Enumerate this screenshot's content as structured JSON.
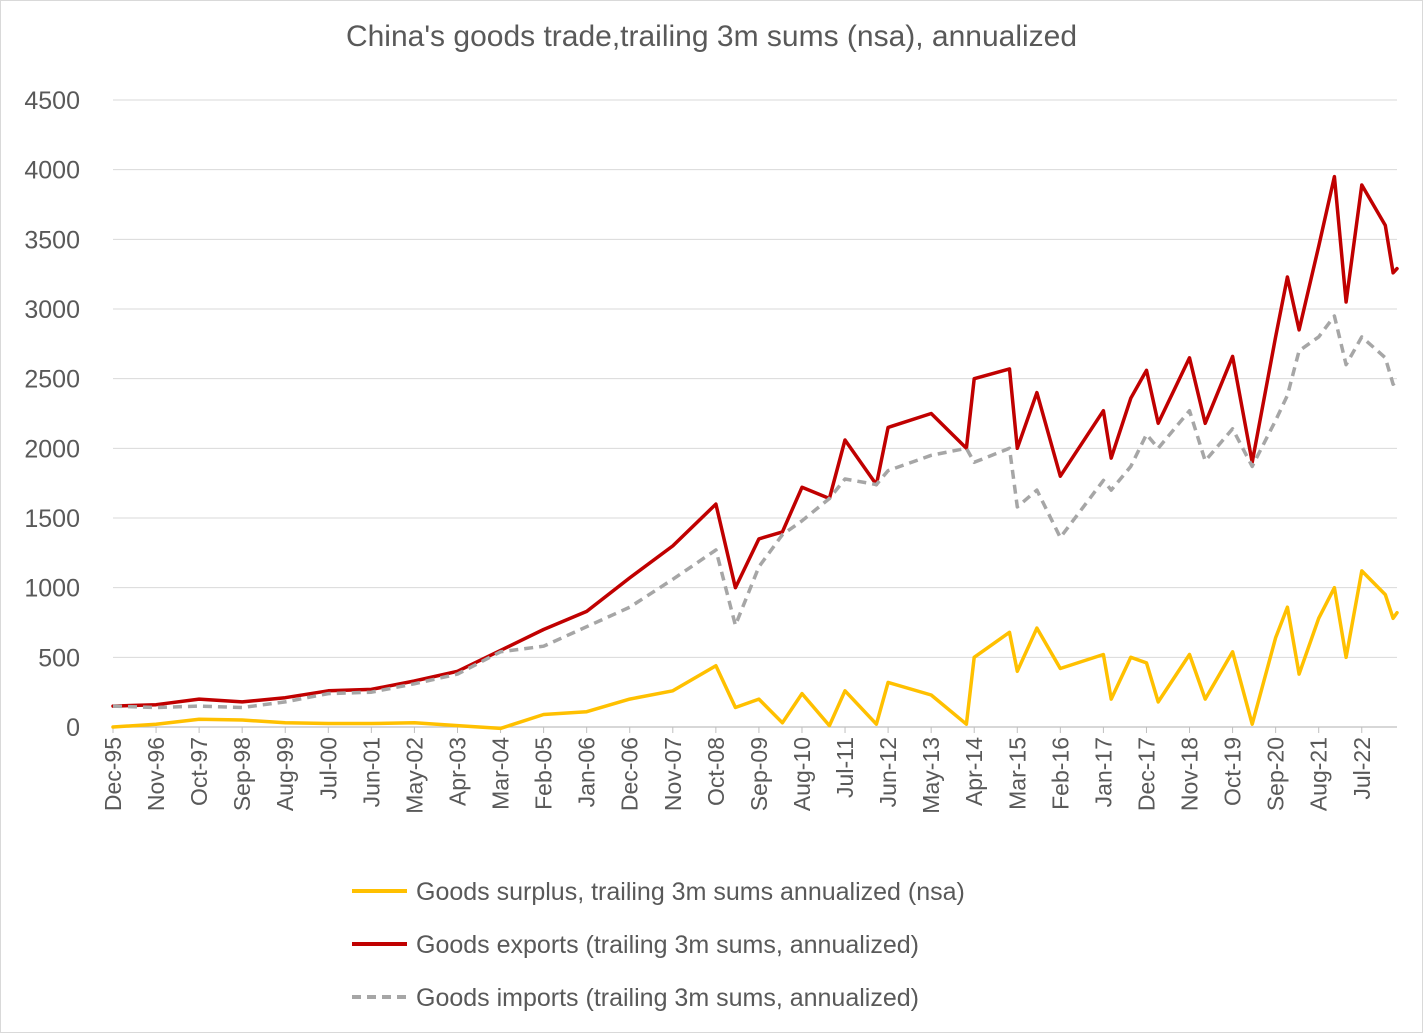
{
  "chart_data": {
    "type": "line",
    "title": "China's goods trade,trailing 3m sums (nsa), annualized",
    "xlabel": "",
    "ylabel": "",
    "ylim": [
      0,
      4500
    ],
    "yticks": [
      0,
      500,
      1000,
      1500,
      2000,
      2500,
      3000,
      3500,
      4000,
      4500
    ],
    "x_start": "Dec-95",
    "x_end": "Apr-23",
    "xtick_labels": [
      "Dec-95",
      "Nov-96",
      "Oct-97",
      "Sep-98",
      "Aug-99",
      "Jul-00",
      "Jun-01",
      "May-02",
      "Apr-03",
      "Mar-04",
      "Feb-05",
      "Jan-06",
      "Dec-06",
      "Nov-07",
      "Oct-08",
      "Sep-09",
      "Aug-10",
      "Jul-11",
      "Jun-12",
      "May-13",
      "Apr-14",
      "Mar-15",
      "Feb-16",
      "Jan-17",
      "Dec-17",
      "Nov-18",
      "Oct-19",
      "Sep-20",
      "Aug-21",
      "Jul-22"
    ],
    "grid": true,
    "legend_position": "bottom",
    "series": [
      {
        "name": "Goods surplus, trailing 3m sums annualized (nsa)",
        "color": "#FFC000",
        "style": "solid",
        "points": [
          [
            "Dec-95",
            0
          ],
          [
            "Nov-96",
            20
          ],
          [
            "Oct-97",
            55
          ],
          [
            "Sep-98",
            50
          ],
          [
            "Aug-99",
            30
          ],
          [
            "Jul-00",
            25
          ],
          [
            "Jun-01",
            25
          ],
          [
            "May-02",
            30
          ],
          [
            "Apr-03",
            10
          ],
          [
            "Mar-04",
            -10
          ],
          [
            "Feb-05",
            90
          ],
          [
            "Jan-06",
            110
          ],
          [
            "Dec-06",
            200
          ],
          [
            "Nov-07",
            260
          ],
          [
            "Oct-08",
            440
          ],
          [
            "Mar-09",
            140
          ],
          [
            "Sep-09",
            200
          ],
          [
            "Mar-10",
            30
          ],
          [
            "Aug-10",
            240
          ],
          [
            "Mar-11",
            10
          ],
          [
            "Jul-11",
            260
          ],
          [
            "Mar-12",
            20
          ],
          [
            "Jun-12",
            320
          ],
          [
            "May-13",
            230
          ],
          [
            "Feb-14",
            20
          ],
          [
            "Apr-14",
            500
          ],
          [
            "Jan-15",
            680
          ],
          [
            "Mar-15",
            400
          ],
          [
            "Aug-15",
            710
          ],
          [
            "Feb-16",
            420
          ],
          [
            "Jan-17",
            520
          ],
          [
            "Mar-17",
            200
          ],
          [
            "Aug-17",
            500
          ],
          [
            "Dec-17",
            460
          ],
          [
            "Mar-18",
            180
          ],
          [
            "Nov-18",
            520
          ],
          [
            "Mar-19",
            200
          ],
          [
            "Oct-19",
            540
          ],
          [
            "Mar-20",
            20
          ],
          [
            "Sep-20",
            640
          ],
          [
            "Dec-20",
            860
          ],
          [
            "Mar-21",
            380
          ],
          [
            "Aug-21",
            780
          ],
          [
            "Dec-21",
            1000
          ],
          [
            "Mar-22",
            500
          ],
          [
            "Jul-22",
            1120
          ],
          [
            "Jan-23",
            950
          ],
          [
            "Mar-23",
            780
          ],
          [
            "Apr-23",
            820
          ]
        ]
      },
      {
        "name": "Goods exports (trailing 3m sums, annualized)",
        "color": "#C00000",
        "style": "solid",
        "points": [
          [
            "Dec-95",
            150
          ],
          [
            "Nov-96",
            160
          ],
          [
            "Oct-97",
            200
          ],
          [
            "Sep-98",
            180
          ],
          [
            "Aug-99",
            210
          ],
          [
            "Jul-00",
            260
          ],
          [
            "Jun-01",
            270
          ],
          [
            "May-02",
            330
          ],
          [
            "Apr-03",
            400
          ],
          [
            "Mar-04",
            550
          ],
          [
            "Feb-05",
            700
          ],
          [
            "Jan-06",
            830
          ],
          [
            "Dec-06",
            1070
          ],
          [
            "Nov-07",
            1300
          ],
          [
            "Oct-08",
            1600
          ],
          [
            "Mar-09",
            1000
          ],
          [
            "Sep-09",
            1350
          ],
          [
            "Mar-10",
            1400
          ],
          [
            "Aug-10",
            1720
          ],
          [
            "Mar-11",
            1640
          ],
          [
            "Jul-11",
            2060
          ],
          [
            "Mar-12",
            1740
          ],
          [
            "Jun-12",
            2150
          ],
          [
            "May-13",
            2250
          ],
          [
            "Feb-14",
            2000
          ],
          [
            "Apr-14",
            2500
          ],
          [
            "Jan-15",
            2570
          ],
          [
            "Mar-15",
            2000
          ],
          [
            "Aug-15",
            2400
          ],
          [
            "Feb-16",
            1800
          ],
          [
            "Jan-17",
            2270
          ],
          [
            "Mar-17",
            1930
          ],
          [
            "Aug-17",
            2360
          ],
          [
            "Dec-17",
            2560
          ],
          [
            "Mar-18",
            2180
          ],
          [
            "Nov-18",
            2650
          ],
          [
            "Mar-19",
            2180
          ],
          [
            "Oct-19",
            2660
          ],
          [
            "Mar-20",
            1900
          ],
          [
            "Sep-20",
            2800
          ],
          [
            "Dec-20",
            3230
          ],
          [
            "Mar-21",
            2850
          ],
          [
            "Aug-21",
            3450
          ],
          [
            "Dec-21",
            3950
          ],
          [
            "Mar-22",
            3050
          ],
          [
            "Jul-22",
            3890
          ],
          [
            "Jan-23",
            3600
          ],
          [
            "Mar-23",
            3260
          ],
          [
            "Apr-23",
            3290
          ]
        ]
      },
      {
        "name": "Goods imports (trailing 3m sums, annualized)",
        "color": "#A6A6A6",
        "style": "dashed",
        "points": [
          [
            "Dec-95",
            150
          ],
          [
            "Nov-96",
            140
          ],
          [
            "Oct-97",
            150
          ],
          [
            "Sep-98",
            140
          ],
          [
            "Aug-99",
            180
          ],
          [
            "Jul-00",
            240
          ],
          [
            "Jun-01",
            250
          ],
          [
            "May-02",
            310
          ],
          [
            "Apr-03",
            380
          ],
          [
            "Mar-04",
            540
          ],
          [
            "Feb-05",
            580
          ],
          [
            "Jan-06",
            720
          ],
          [
            "Dec-06",
            860
          ],
          [
            "Nov-07",
            1060
          ],
          [
            "Oct-08",
            1270
          ],
          [
            "Mar-09",
            730
          ],
          [
            "Sep-09",
            1150
          ],
          [
            "Mar-10",
            1380
          ],
          [
            "Aug-10",
            1480
          ],
          [
            "Mar-11",
            1640
          ],
          [
            "Jul-11",
            1780
          ],
          [
            "Mar-12",
            1740
          ],
          [
            "Jun-12",
            1840
          ],
          [
            "May-13",
            1950
          ],
          [
            "Feb-14",
            2000
          ],
          [
            "Apr-14",
            1900
          ],
          [
            "Jan-15",
            2000
          ],
          [
            "Mar-15",
            1580
          ],
          [
            "Aug-15",
            1700
          ],
          [
            "Feb-16",
            1360
          ],
          [
            "Jan-17",
            1770
          ],
          [
            "Mar-17",
            1700
          ],
          [
            "Aug-17",
            1870
          ],
          [
            "Dec-17",
            2100
          ],
          [
            "Mar-18",
            2000
          ],
          [
            "Nov-18",
            2270
          ],
          [
            "Mar-19",
            1910
          ],
          [
            "Oct-19",
            2140
          ],
          [
            "Mar-20",
            1870
          ],
          [
            "Sep-20",
            2200
          ],
          [
            "Dec-20",
            2380
          ],
          [
            "Mar-21",
            2700
          ],
          [
            "Aug-21",
            2800
          ],
          [
            "Dec-21",
            2950
          ],
          [
            "Mar-22",
            2600
          ],
          [
            "Jul-22",
            2800
          ],
          [
            "Jan-23",
            2650
          ],
          [
            "Mar-23",
            2460
          ],
          [
            "Apr-23",
            2480
          ]
        ]
      }
    ]
  }
}
